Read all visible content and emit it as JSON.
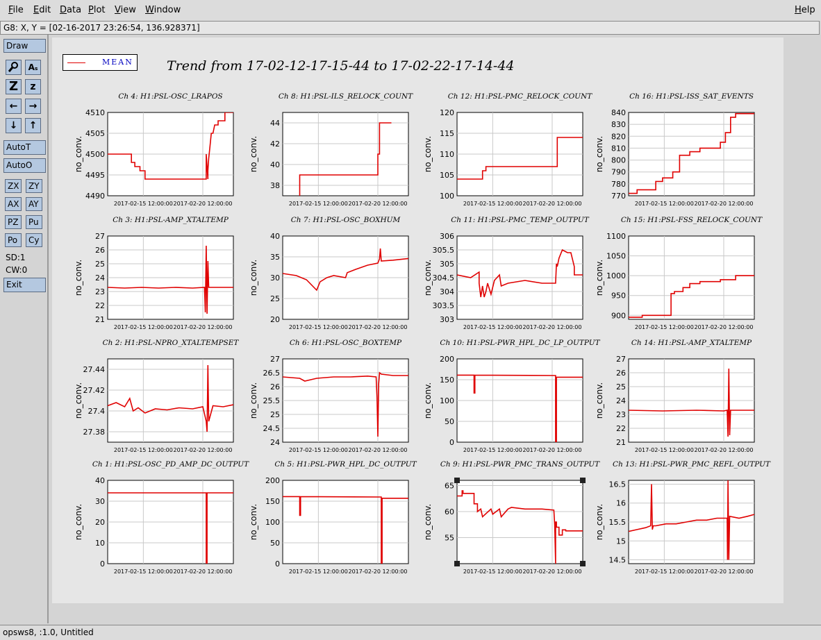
{
  "menu": {
    "file": "File",
    "edit": "Edit",
    "data": "Data",
    "plot": "Plot",
    "view": "View",
    "window": "Window",
    "help": "Help"
  },
  "coords": "G8: X, Y = [02-16-2017 23:26:54, 136.928371]",
  "toolbar": {
    "draw": "Draw",
    "autot": "AutoT",
    "autoo": "AutoO",
    "zx": "ZX",
    "zy": "ZY",
    "ax": "AX",
    "ay": "AY",
    "pz": "PZ",
    "pu": "Pu",
    "po": "Po",
    "cy": "Cy",
    "sd": "SD:1",
    "cw": "CW:0",
    "exit": "Exit",
    "icons": {
      "zoom": "Z",
      "zoom_small": "z",
      "left": "←",
      "right": "→",
      "down": "↓",
      "up": "↑",
      "text": "Aₛ"
    }
  },
  "legend": {
    "label": "MEAN",
    "color": "#e00000"
  },
  "main_title": "Trend from 17-02-12-17-15-44 to 17-02-22-17-14-44",
  "status": "opsws8, :1.0, Untitled",
  "colors": {
    "series": "#e00000",
    "grid": "#c8c8c8",
    "plot_bg": "#ffffff",
    "axis": "#000000"
  },
  "chart_data": [
    {
      "type": "line",
      "title": "Ch 4: H1:PSL-OSC_LRAPOS",
      "ylabel": "no_conv.",
      "xticks": [
        "2017-02-15 12:00:00",
        "2017-02-20 12:00:00"
      ],
      "ylim": [
        4490,
        4510
      ],
      "yticks": [
        "4490",
        "4495",
        "4500",
        "4505",
        "4510"
      ],
      "series": [
        {
          "name": "MEAN",
          "x": [
            0,
            1.4,
            1.4,
            1.6,
            1.6,
            1.9,
            1.9,
            2.2,
            2.2,
            2.5,
            5.8,
            5.8,
            5.9,
            5.9,
            5.95,
            6.0,
            6.05,
            6.1,
            6.2,
            6.3,
            6.5,
            6.5,
            6.9,
            6.9,
            7.4
          ],
          "y": [
            4500,
            4500,
            4498,
            4498,
            4497,
            4497,
            4496,
            4496,
            4494,
            4494,
            4494,
            4500,
            4494,
            4496,
            4499,
            4501,
            4503,
            4505,
            4505,
            4507,
            4507,
            4508,
            4508,
            4510,
            4510
          ]
        }
      ]
    },
    {
      "type": "line",
      "title": "Ch 8: H1:PSL-ILS_RELOCK_COUNT",
      "ylabel": "no_conv.",
      "xticks": [
        "2017-02-15 12:00:00",
        "2017-02-20 12:00:00"
      ],
      "ylim": [
        37,
        45
      ],
      "yticks": [
        "38",
        "40",
        "42",
        "44"
      ],
      "series": [
        {
          "name": "MEAN",
          "x": [
            1.0,
            1.0,
            5.6,
            5.6,
            5.7,
            5.7,
            6.4
          ],
          "y": [
            37,
            39,
            39,
            41,
            41,
            44,
            44
          ]
        }
      ]
    },
    {
      "type": "line",
      "title": "Ch 12: H1:PSL-PMC_RELOCK_COUNT",
      "ylabel": "no_conv.",
      "xticks": [
        "2017-02-15 12:00:00",
        "2017-02-20 12:00:00"
      ],
      "ylim": [
        100,
        120
      ],
      "yticks": [
        "100",
        "105",
        "110",
        "115",
        "120"
      ],
      "series": [
        {
          "name": "MEAN",
          "x": [
            0,
            1.5,
            1.5,
            1.7,
            1.7,
            5.9,
            5.9,
            7.4
          ],
          "y": [
            104,
            104,
            106,
            106,
            107,
            107,
            114,
            114
          ]
        }
      ]
    },
    {
      "type": "line",
      "title": "Ch 16: H1:PSL-ISS_SAT_EVENTS",
      "ylabel": "no_conv.",
      "xticks": [
        "2017-02-15 12:00:00",
        "2017-02-20 12:00:00"
      ],
      "ylim": [
        770,
        840
      ],
      "yticks": [
        "770",
        "780",
        "790",
        "800",
        "810",
        "820",
        "830",
        "840"
      ],
      "series": [
        {
          "name": "MEAN",
          "x": [
            0,
            0.5,
            0.5,
            1.6,
            1.6,
            2.0,
            2.0,
            2.6,
            2.6,
            3.0,
            3.0,
            3.6,
            3.6,
            4.2,
            4.2,
            5.4,
            5.4,
            5.7,
            5.7,
            6.0,
            6.0,
            6.3,
            6.3,
            7.4
          ],
          "y": [
            772,
            772,
            775,
            775,
            782,
            782,
            785,
            785,
            790,
            790,
            804,
            804,
            807,
            807,
            810,
            810,
            815,
            815,
            823,
            823,
            836,
            836,
            839,
            839
          ]
        }
      ]
    },
    {
      "type": "line",
      "title": "Ch 3: H1:PSL-AMP_XTALTEMP",
      "ylabel": "no_conv.",
      "xticks": [
        "2017-02-15 12:00:00",
        "2017-02-20 12:00:00"
      ],
      "ylim": [
        21,
        27
      ],
      "yticks": [
        "21",
        "22",
        "23",
        "24",
        "25",
        "26",
        "27"
      ],
      "series": [
        {
          "name": "MEAN",
          "x": [
            0,
            1,
            2,
            3,
            4,
            5,
            5.7,
            5.75,
            5.8,
            5.85,
            5.9,
            5.95,
            6.0,
            7.4
          ],
          "y": [
            23.3,
            23.25,
            23.3,
            23.25,
            23.3,
            23.25,
            23.3,
            21.5,
            26.3,
            21.4,
            25.2,
            23.3,
            23.3,
            23.3
          ]
        }
      ]
    },
    {
      "type": "line",
      "title": "Ch 7: H1:PSL-OSC_BOXHUM",
      "ylabel": "no_conv.",
      "xticks": [
        "2017-02-15 12:00:00",
        "2017-02-20 12:00:00"
      ],
      "ylim": [
        20,
        40
      ],
      "yticks": [
        "20",
        "25",
        "30",
        "35",
        "40"
      ],
      "series": [
        {
          "name": "MEAN",
          "x": [
            0,
            0.8,
            1.4,
            2.0,
            2.2,
            2.6,
            3.0,
            3.7,
            3.8,
            4.3,
            5.0,
            5.6,
            5.7,
            5.75,
            5.8,
            6.5,
            7.4
          ],
          "y": [
            31,
            30.5,
            29.5,
            27,
            29,
            30,
            30.5,
            30,
            31.2,
            32,
            33,
            33.5,
            34.5,
            37,
            34,
            34.2,
            34.6
          ]
        }
      ]
    },
    {
      "type": "line",
      "title": "Ch 11: H1:PSL-PMC_TEMP_OUTPUT",
      "ylabel": "no_conv.",
      "xticks": [
        "2017-02-15 12:00:00",
        "2017-02-20 12:00:00"
      ],
      "ylim": [
        303,
        306
      ],
      "yticks": [
        "303",
        "303.5",
        "304",
        "304.5",
        "305",
        "305.5",
        "306"
      ],
      "series": [
        {
          "name": "MEAN",
          "x": [
            0,
            0.8,
            1.3,
            1.3,
            1.4,
            1.5,
            1.6,
            1.7,
            1.8,
            2.0,
            2.2,
            2.5,
            2.6,
            3.0,
            4.0,
            5.0,
            5.8,
            5.85,
            5.9,
            6.0,
            6.2,
            6.5,
            6.7,
            6.9,
            6.9,
            7.4
          ],
          "y": [
            304.6,
            304.5,
            304.7,
            304.3,
            303.8,
            304.2,
            303.8,
            304.0,
            304.3,
            303.9,
            304.4,
            304.6,
            304.2,
            304.3,
            304.4,
            304.3,
            304.3,
            305.0,
            304.9,
            305.2,
            305.5,
            305.4,
            305.4,
            304.9,
            304.6,
            304.6
          ]
        }
      ]
    },
    {
      "type": "line",
      "title": "Ch 15: H1:PSL-FSS_RELOCK_COUNT",
      "ylabel": "no_conv.",
      "xticks": [
        "2017-02-15 12:00:00",
        "2017-02-20 12:00:00"
      ],
      "ylim": [
        890,
        1100
      ],
      "yticks": [
        "900",
        "950",
        "1000",
        "1050",
        "1100"
      ],
      "series": [
        {
          "name": "MEAN",
          "x": [
            0,
            0.8,
            0.8,
            2.5,
            2.5,
            2.7,
            2.7,
            3.2,
            3.2,
            3.6,
            3.6,
            4.2,
            4.2,
            5.4,
            5.4,
            6.3,
            6.3,
            7.4
          ],
          "y": [
            895,
            895,
            900,
            900,
            955,
            955,
            960,
            960,
            970,
            970,
            980,
            980,
            985,
            985,
            990,
            990,
            1000,
            1000
          ]
        }
      ]
    },
    {
      "type": "line",
      "title": "Ch 2: H1:PSL-NPRO_XTALTEMPSET",
      "ylabel": "no_conv.",
      "xticks": [
        "2017-02-15 12:00:00",
        "2017-02-20 12:00:00"
      ],
      "ylim": [
        27.37,
        27.45
      ],
      "yticks": [
        "27.38",
        "27.4",
        "27.42",
        "27.44"
      ],
      "series": [
        {
          "name": "MEAN",
          "x": [
            0,
            0.5,
            1.0,
            1.3,
            1.5,
            1.8,
            2.2,
            2.8,
            3.5,
            4.2,
            5.0,
            5.6,
            5.8,
            5.85,
            5.9,
            5.95,
            6.2,
            6.8,
            7.4
          ],
          "y": [
            27.405,
            27.408,
            27.404,
            27.412,
            27.4,
            27.403,
            27.398,
            27.402,
            27.401,
            27.403,
            27.402,
            27.404,
            27.39,
            27.38,
            27.444,
            27.39,
            27.405,
            27.404,
            27.406
          ]
        }
      ]
    },
    {
      "type": "line",
      "title": "Ch 6: H1:PSL-OSC_BOXTEMP",
      "ylabel": "no_conv.",
      "xticks": [
        "2017-02-15 12:00:00",
        "2017-02-20 12:00:00"
      ],
      "ylim": [
        24,
        27
      ],
      "yticks": [
        "24",
        "24.5",
        "25",
        "25.5",
        "26",
        "26.5",
        "27"
      ],
      "series": [
        {
          "name": "MEAN",
          "x": [
            0,
            1.0,
            1.3,
            2.0,
            3.0,
            4.0,
            5.0,
            5.5,
            5.55,
            5.6,
            5.65,
            5.7,
            5.8,
            6.5,
            7.4
          ],
          "y": [
            26.35,
            26.3,
            26.2,
            26.3,
            26.35,
            26.35,
            26.38,
            26.35,
            25.6,
            24.2,
            26.1,
            26.5,
            26.45,
            26.4,
            26.4
          ]
        }
      ]
    },
    {
      "type": "line",
      "title": "Ch 10: H1:PSL-PWR_HPL_DC_LP_OUTPUT",
      "ylabel": "no_conv.",
      "xticks": [
        "2017-02-15 12:00:00",
        "2017-02-20 12:00:00"
      ],
      "ylim": [
        0,
        200
      ],
      "yticks": [
        "0",
        "50",
        "100",
        "150",
        "200"
      ],
      "series": [
        {
          "name": "MEAN",
          "x": [
            0,
            1.0,
            1.0,
            1.05,
            1.05,
            5.8,
            5.8,
            5.85,
            5.85,
            7.4
          ],
          "y": [
            161,
            161,
            118,
            118,
            161,
            160,
            0,
            0,
            156,
            156
          ]
        }
      ]
    },
    {
      "type": "line",
      "title": "Ch 14: H1:PSL-AMP_XTALTEMP",
      "ylabel": "no_conv.",
      "xticks": [
        "2017-02-15 12:00:00",
        "2017-02-20 12:00:00"
      ],
      "ylim": [
        21,
        27
      ],
      "yticks": [
        "21",
        "22",
        "23",
        "24",
        "25",
        "26",
        "27"
      ],
      "series": [
        {
          "name": "MEAN",
          "x": [
            0,
            2,
            4,
            5.6,
            5.8,
            5.85,
            5.9,
            5.95,
            6.0,
            7.4
          ],
          "y": [
            23.3,
            23.25,
            23.3,
            23.25,
            23.3,
            21.4,
            26.3,
            21.5,
            23.3,
            23.3
          ]
        }
      ]
    },
    {
      "type": "line",
      "title": "Ch 1: H1:PSL-OSC_PD_AMP_DC_OUTPUT",
      "ylabel": "no_conv.",
      "xticks": [
        "2017-02-15 12:00:00",
        "2017-02-20 12:00:00"
      ],
      "ylim": [
        0,
        40
      ],
      "yticks": [
        "0",
        "10",
        "20",
        "30",
        "40"
      ],
      "series": [
        {
          "name": "MEAN",
          "x": [
            0,
            5.8,
            5.8,
            5.85,
            5.85,
            7.4
          ],
          "y": [
            34,
            34,
            0,
            0,
            34,
            34
          ]
        }
      ]
    },
    {
      "type": "line",
      "title": "Ch 5: H1:PSL-PWR_HPL_DC_OUTPUT",
      "ylabel": "no_conv.",
      "xticks": [
        "2017-02-15 12:00:00",
        "2017-02-20 12:00:00"
      ],
      "ylim": [
        0,
        200
      ],
      "yticks": [
        "0",
        "50",
        "100",
        "150",
        "200"
      ],
      "series": [
        {
          "name": "MEAN",
          "x": [
            0,
            1.0,
            1.0,
            1.05,
            1.05,
            5.8,
            5.8,
            5.85,
            5.85,
            7.4
          ],
          "y": [
            161,
            161,
            116,
            116,
            161,
            160,
            0,
            0,
            157,
            157
          ]
        }
      ]
    },
    {
      "type": "line",
      "title": "Ch 9: H1:PSL-PWR_PMC_TRANS_OUTPUT",
      "ylabel": "no_conv.",
      "xticks": [
        "2017-02-15 12:00:00",
        "2017-02-20 12:00:00"
      ],
      "ylim": [
        50,
        66
      ],
      "yticks": [
        "55",
        "60",
        "65"
      ],
      "series": [
        {
          "name": "MEAN",
          "x": [
            0,
            0.3,
            0.3,
            0.35,
            0.35,
            1.0,
            1.0,
            1.2,
            1.2,
            1.4,
            1.5,
            2.0,
            2.1,
            2.5,
            2.6,
            3.0,
            3.2,
            4.0,
            5.0,
            5.7,
            5.75,
            5.8,
            5.8,
            5.85,
            5.85,
            6.0,
            6.0,
            6.2,
            6.2,
            6.4,
            6.4,
            7.4
          ],
          "y": [
            63,
            63,
            64,
            64,
            63.5,
            63.5,
            61.5,
            61.5,
            60,
            60.5,
            59,
            60.5,
            59.5,
            60.5,
            59,
            60.5,
            60.8,
            60.5,
            60.5,
            60.3,
            57.5,
            50,
            58,
            58,
            57,
            57,
            55.5,
            55.5,
            56.5,
            56.5,
            56.3,
            56.3
          ]
        }
      ]
    },
    {
      "type": "line",
      "title": "Ch 13: H1:PSL-PWR_PMC_REFL_OUTPUT",
      "ylabel": "no_conv.",
      "xticks": [
        "2017-02-15 12:00:00",
        "2017-02-20 12:00:00"
      ],
      "ylim": [
        14.4,
        16.6
      ],
      "yticks": [
        "14.5",
        "15",
        "15.5",
        "16",
        "16.5"
      ],
      "series": [
        {
          "name": "MEAN",
          "x": [
            0,
            0.5,
            1.0,
            1.3,
            1.35,
            1.4,
            1.45,
            1.6,
            2.2,
            2.8,
            3.4,
            4.0,
            4.6,
            5.2,
            5.8,
            5.82,
            5.85,
            5.9,
            5.95,
            6.5,
            7.0,
            7.4
          ],
          "y": [
            15.25,
            15.3,
            15.35,
            15.4,
            16.5,
            15.3,
            15.4,
            15.4,
            15.45,
            15.45,
            15.5,
            15.55,
            15.55,
            15.6,
            15.6,
            14.5,
            16.6,
            14.5,
            15.65,
            15.6,
            15.65,
            15.7
          ]
        }
      ]
    }
  ]
}
